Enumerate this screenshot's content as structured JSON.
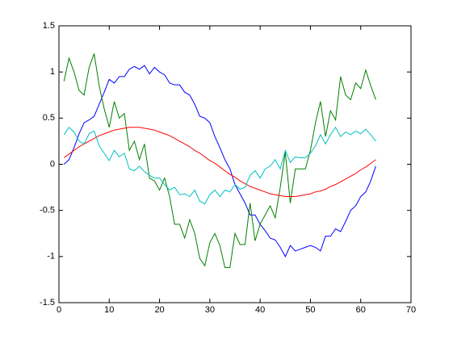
{
  "chart_data": {
    "type": "line",
    "x": [
      1,
      2,
      3,
      4,
      5,
      6,
      7,
      8,
      9,
      10,
      11,
      12,
      13,
      14,
      15,
      16,
      17,
      18,
      19,
      20,
      21,
      22,
      23,
      24,
      25,
      26,
      27,
      28,
      29,
      30,
      31,
      32,
      33,
      34,
      35,
      36,
      37,
      38,
      39,
      40,
      41,
      42,
      43,
      44,
      45,
      46,
      47,
      48,
      49,
      50,
      51,
      52,
      53,
      54,
      55,
      56,
      57,
      58,
      59,
      60,
      61,
      62,
      63
    ],
    "series": [
      {
        "color": "#0000ff",
        "values": [
          0.0,
          0.05,
          0.18,
          0.33,
          0.45,
          0.48,
          0.52,
          0.65,
          0.78,
          0.92,
          0.88,
          0.95,
          0.95,
          1.03,
          1.06,
          1.03,
          1.07,
          0.98,
          1.05,
          1.0,
          0.97,
          0.88,
          0.86,
          0.86,
          0.78,
          0.75,
          0.65,
          0.52,
          0.5,
          0.45,
          0.3,
          0.18,
          0.05,
          -0.05,
          -0.22,
          -0.32,
          -0.42,
          -0.55,
          -0.55,
          -0.65,
          -0.72,
          -0.8,
          -0.82,
          -0.9,
          -1.0,
          -0.88,
          -0.94,
          -0.92,
          -0.9,
          -0.88,
          -0.9,
          -0.94,
          -0.78,
          -0.78,
          -0.7,
          -0.73,
          -0.62,
          -0.5,
          -0.45,
          -0.35,
          -0.3,
          -0.18,
          -0.02
        ]
      },
      {
        "color": "#008000",
        "values": [
          0.9,
          1.15,
          1.0,
          0.8,
          0.75,
          1.05,
          1.2,
          0.85,
          0.6,
          0.4,
          0.68,
          0.5,
          0.55,
          0.15,
          0.25,
          0.05,
          0.22,
          -0.15,
          -0.18,
          -0.28,
          -0.15,
          -0.35,
          -0.65,
          -0.65,
          -0.8,
          -0.6,
          -0.75,
          -1.02,
          -1.1,
          -0.85,
          -0.75,
          -0.88,
          -1.12,
          -1.12,
          -0.75,
          -0.87,
          -0.87,
          -0.42,
          -0.83,
          -0.65,
          -0.55,
          -0.45,
          -0.58,
          -0.25,
          0.13,
          -0.42,
          -0.05,
          -0.05,
          -0.05,
          0.15,
          0.45,
          0.68,
          0.3,
          0.58,
          0.48,
          0.95,
          0.75,
          0.7,
          0.88,
          0.82,
          1.02,
          0.85,
          0.7
        ]
      },
      {
        "color": "#ff0000",
        "values": [
          0.07,
          0.11,
          0.15,
          0.19,
          0.22,
          0.25,
          0.28,
          0.31,
          0.33,
          0.35,
          0.37,
          0.38,
          0.39,
          0.4,
          0.4,
          0.4,
          0.39,
          0.38,
          0.37,
          0.35,
          0.33,
          0.31,
          0.28,
          0.25,
          0.22,
          0.19,
          0.15,
          0.12,
          0.08,
          0.04,
          0.01,
          -0.03,
          -0.07,
          -0.11,
          -0.14,
          -0.18,
          -0.21,
          -0.24,
          -0.26,
          -0.28,
          -0.3,
          -0.32,
          -0.33,
          -0.34,
          -0.35,
          -0.35,
          -0.35,
          -0.34,
          -0.33,
          -0.32,
          -0.3,
          -0.29,
          -0.27,
          -0.24,
          -0.22,
          -0.19,
          -0.16,
          -0.13,
          -0.1,
          -0.06,
          -0.03,
          0.01,
          0.05
        ]
      },
      {
        "color": "#00bfbf",
        "values": [
          0.32,
          0.4,
          0.35,
          0.25,
          0.22,
          0.33,
          0.36,
          0.2,
          0.12,
          0.04,
          0.15,
          0.08,
          0.12,
          -0.05,
          -0.07,
          -0.02,
          -0.08,
          -0.12,
          -0.15,
          -0.15,
          -0.22,
          -0.28,
          -0.25,
          -0.33,
          -0.32,
          -0.35,
          -0.28,
          -0.4,
          -0.43,
          -0.33,
          -0.28,
          -0.35,
          -0.28,
          -0.3,
          -0.22,
          -0.27,
          -0.25,
          -0.12,
          -0.07,
          -0.15,
          -0.05,
          -0.02,
          0.05,
          -0.05,
          0.15,
          0.02,
          0.08,
          0.07,
          0.07,
          0.12,
          0.2,
          0.32,
          0.22,
          0.32,
          0.4,
          0.3,
          0.35,
          0.32,
          0.36,
          0.33,
          0.38,
          0.32,
          0.25
        ]
      }
    ],
    "xlim": [
      0,
      70
    ],
    "xticks": [
      0,
      10,
      20,
      30,
      40,
      50,
      60,
      70
    ],
    "ylim": [
      -1.5,
      1.5
    ],
    "yticks": [
      -1.5,
      -1,
      -0.5,
      0,
      0.5,
      1,
      1.5
    ]
  }
}
